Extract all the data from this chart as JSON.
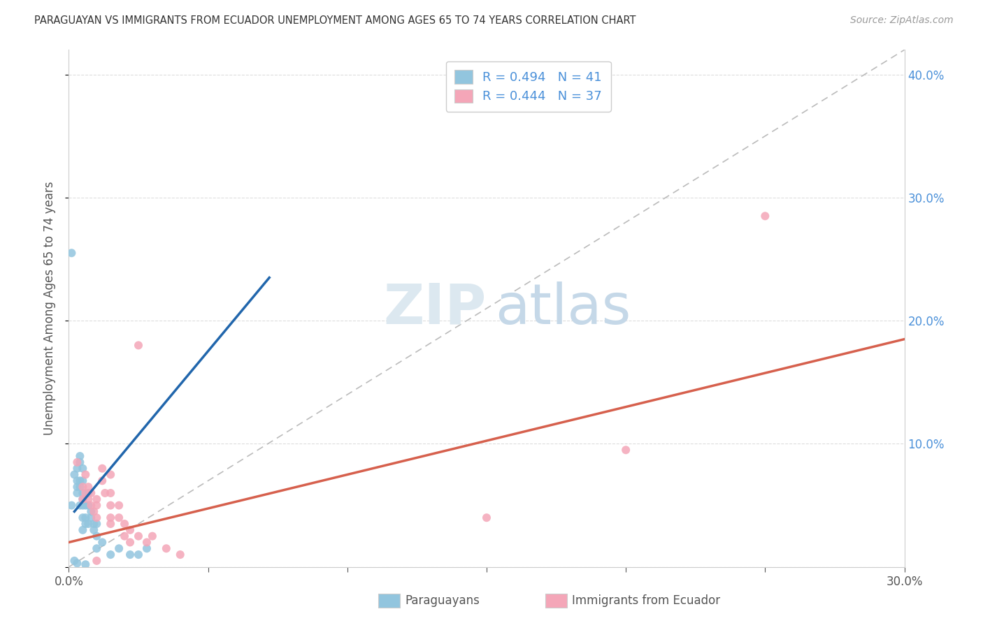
{
  "title": "PARAGUAYAN VS IMMIGRANTS FROM ECUADOR UNEMPLOYMENT AMONG AGES 65 TO 74 YEARS CORRELATION CHART",
  "source": "Source: ZipAtlas.com",
  "ylabel": "Unemployment Among Ages 65 to 74 years",
  "xlim": [
    0,
    0.3
  ],
  "ylim": [
    0,
    0.42
  ],
  "blue_color": "#92c5de",
  "pink_color": "#f4a6b8",
  "blue_line_color": "#2166ac",
  "pink_line_color": "#d6604d",
  "dash_color": "#bbbbbb",
  "blue_line": {
    "x0": 0.002,
    "y0": 0.045,
    "x1": 0.072,
    "y1": 0.235
  },
  "dash_line": {
    "x0": 0.0,
    "y0": 0.0,
    "x1": 0.3,
    "y1": 0.42
  },
  "pink_line": {
    "x0": 0.0,
    "y0": 0.02,
    "x1": 0.3,
    "y1": 0.185
  },
  "legend_r1": "R = 0.494",
  "legend_n1": "N = 41",
  "legend_r2": "R = 0.444",
  "legend_n2": "N = 37",
  "blue_scatter": [
    [
      0.001,
      0.255
    ],
    [
      0.001,
      0.05
    ],
    [
      0.002,
      0.075
    ],
    [
      0.003,
      0.08
    ],
    [
      0.003,
      0.07
    ],
    [
      0.003,
      0.065
    ],
    [
      0.003,
      0.06
    ],
    [
      0.004,
      0.09
    ],
    [
      0.004,
      0.085
    ],
    [
      0.004,
      0.07
    ],
    [
      0.004,
      0.065
    ],
    [
      0.004,
      0.05
    ],
    [
      0.005,
      0.08
    ],
    [
      0.005,
      0.07
    ],
    [
      0.005,
      0.06
    ],
    [
      0.005,
      0.055
    ],
    [
      0.005,
      0.05
    ],
    [
      0.005,
      0.04
    ],
    [
      0.005,
      0.03
    ],
    [
      0.006,
      0.05
    ],
    [
      0.006,
      0.04
    ],
    [
      0.006,
      0.035
    ],
    [
      0.007,
      0.06
    ],
    [
      0.007,
      0.05
    ],
    [
      0.007,
      0.035
    ],
    [
      0.008,
      0.045
    ],
    [
      0.008,
      0.04
    ],
    [
      0.009,
      0.035
    ],
    [
      0.009,
      0.03
    ],
    [
      0.01,
      0.035
    ],
    [
      0.01,
      0.025
    ],
    [
      0.01,
      0.015
    ],
    [
      0.012,
      0.02
    ],
    [
      0.015,
      0.01
    ],
    [
      0.018,
      0.015
    ],
    [
      0.022,
      0.01
    ],
    [
      0.025,
      0.01
    ],
    [
      0.028,
      0.015
    ],
    [
      0.002,
      0.005
    ],
    [
      0.003,
      0.003
    ],
    [
      0.006,
      0.002
    ]
  ],
  "pink_scatter": [
    [
      0.003,
      0.085
    ],
    [
      0.005,
      0.065
    ],
    [
      0.005,
      0.055
    ],
    [
      0.006,
      0.075
    ],
    [
      0.006,
      0.06
    ],
    [
      0.007,
      0.065
    ],
    [
      0.007,
      0.055
    ],
    [
      0.008,
      0.06
    ],
    [
      0.008,
      0.05
    ],
    [
      0.009,
      0.045
    ],
    [
      0.01,
      0.055
    ],
    [
      0.01,
      0.05
    ],
    [
      0.01,
      0.04
    ],
    [
      0.012,
      0.08
    ],
    [
      0.012,
      0.07
    ],
    [
      0.013,
      0.06
    ],
    [
      0.015,
      0.075
    ],
    [
      0.015,
      0.06
    ],
    [
      0.015,
      0.05
    ],
    [
      0.015,
      0.04
    ],
    [
      0.015,
      0.035
    ],
    [
      0.018,
      0.05
    ],
    [
      0.018,
      0.04
    ],
    [
      0.02,
      0.035
    ],
    [
      0.02,
      0.025
    ],
    [
      0.022,
      0.03
    ],
    [
      0.022,
      0.02
    ],
    [
      0.025,
      0.18
    ],
    [
      0.025,
      0.025
    ],
    [
      0.028,
      0.02
    ],
    [
      0.03,
      0.025
    ],
    [
      0.035,
      0.015
    ],
    [
      0.04,
      0.01
    ],
    [
      0.2,
      0.095
    ],
    [
      0.15,
      0.04
    ],
    [
      0.25,
      0.285
    ],
    [
      0.01,
      0.005
    ]
  ]
}
